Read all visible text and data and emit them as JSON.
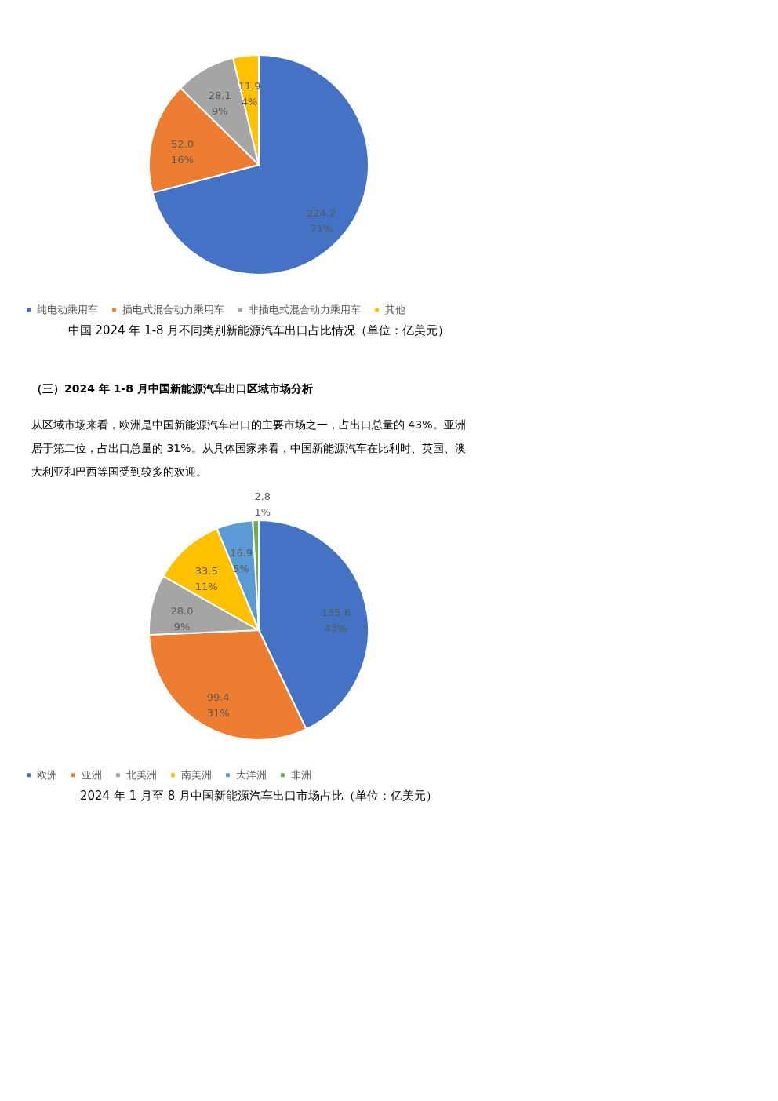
{
  "chart_data": [
    {
      "type": "pie",
      "title": "中国 2024 年 1-8 月不同类别新能源汽车出口占比情况（单位：亿美元）",
      "categories": [
        "纯电动乘用车",
        "插电式混合动力乘用车",
        "非插电式混合动力乘用车",
        "其他"
      ],
      "values": [
        224.2,
        52.0,
        28.1,
        11.9
      ],
      "colors": [
        "#4472c4",
        "#ed7d31",
        "#a5a5a5",
        "#ffc000"
      ],
      "value_labels": [
        "224.2\n71%",
        "52.0\n16%",
        "28.1\n9%",
        "11.9\n4%"
      ],
      "legend": "bottom"
    },
    {
      "type": "pie",
      "title": "2024 年 1 月至 8 月中国新能源汽车出口市场占比（单位：亿美元）",
      "annotations": [
        "（三）2024 年 1-8 月中国新能源汽车出口区域市场分析",
        "从区域市场来看，欧洲是中国新能源汽车出口的主要市场之一，占出口总量的 43%。亚洲居于第二位，占出口总量的 31%。从具体国家来看，中国新能源汽车在比利时、英国、澳大利亚和巴西等国受到较多的欢迎。"
      ],
      "categories": [
        "欧洲",
        "亚洲",
        "北美洲",
        "南美洲",
        "大洋洲",
        "非洲"
      ],
      "values": [
        135.6,
        99.4,
        28.0,
        33.5,
        16.9,
        2.8
      ],
      "colors": [
        "#4472c4",
        "#ed7d31",
        "#a5a5a5",
        "#ffc000",
        "#5b9bd5",
        "#70ad47"
      ],
      "value_labels": [
        "135.6\n43%",
        "99.4\n31%",
        "28.0\n9%",
        "33.5\n11%",
        "16.9\n5%",
        "2.8\n1%"
      ],
      "legend": "bottom"
    }
  ]
}
